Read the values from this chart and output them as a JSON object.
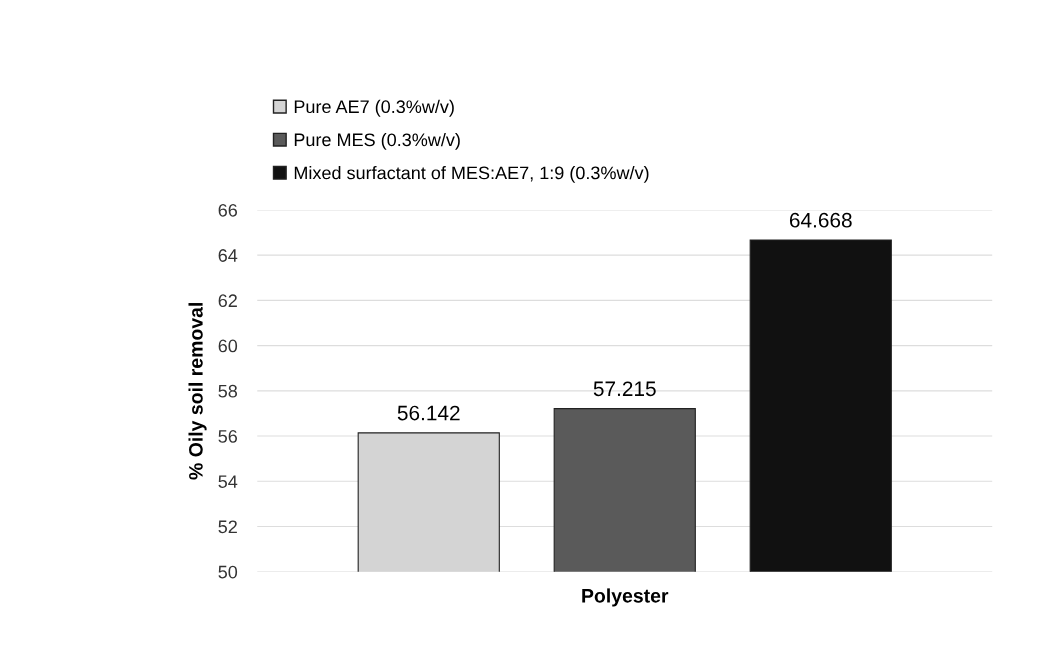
{
  "chart_data": {
    "type": "bar",
    "categories": [
      "Polyester"
    ],
    "ylabel": "% Oily soil removal",
    "series": [
      {
        "name": "Pure AE7 (0.3%w/v)",
        "color": "#d4d4d4",
        "values": [
          56.142
        ]
      },
      {
        "name": "Pure MES (0.3%w/v)",
        "color": "#5a5a5a",
        "values": [
          57.215
        ]
      },
      {
        "name": "Mixed surfactant of MES:AE7, 1:9 (0.3%w/v)",
        "color": "#111111",
        "values": [
          64.668
        ]
      }
    ],
    "ylim": [
      50,
      66
    ],
    "yticks": [
      50,
      52,
      54,
      56,
      58,
      60,
      62,
      64,
      66
    ],
    "grid": "y",
    "legend": "top left",
    "data_labels": true
  }
}
